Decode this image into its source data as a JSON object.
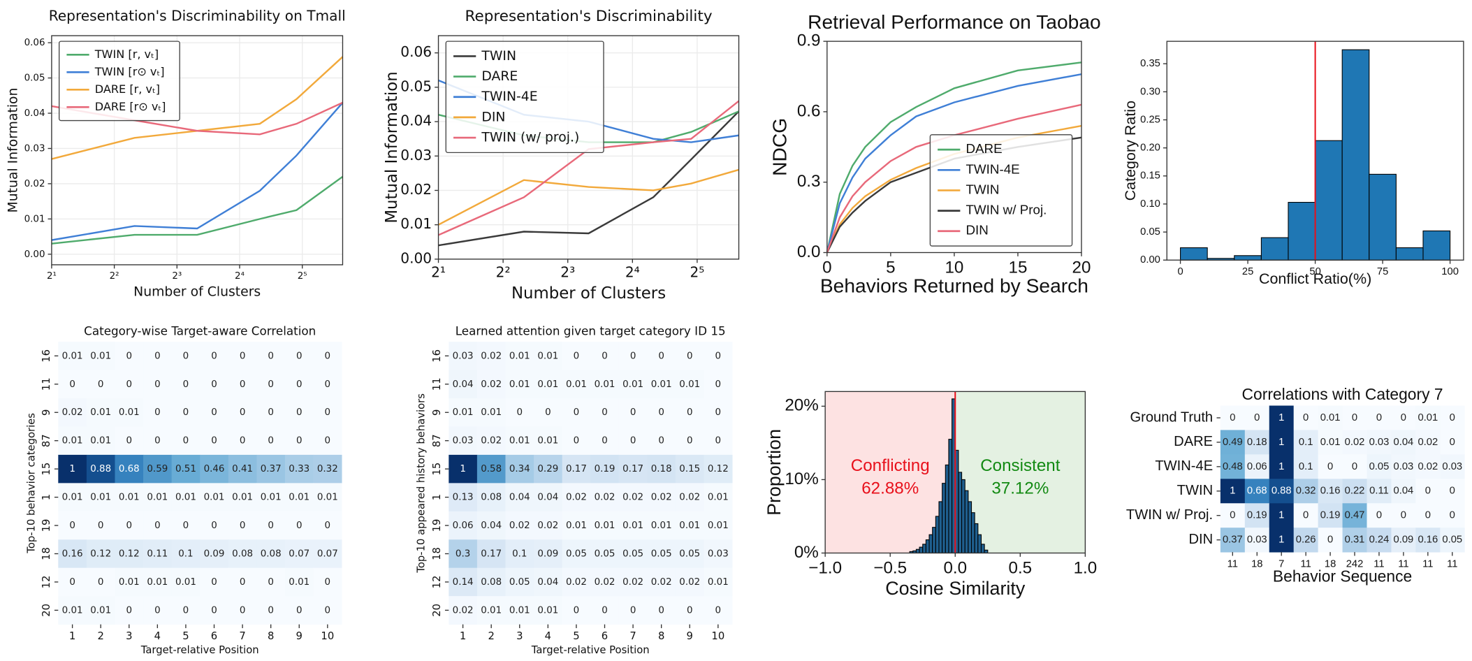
{
  "chart_data": [
    {
      "type": "line",
      "title": "Representation's Discriminability on Tmall",
      "xlabel": "Number of Clusters",
      "ylabel": "Mutual Information",
      "xscale": "log",
      "x": [
        2,
        5,
        10,
        20,
        30,
        50
      ],
      "xlim": [
        2,
        50
      ],
      "xticks": [
        {
          "value": 2,
          "label": "2¹"
        },
        {
          "value": 4,
          "label": "2²"
        },
        {
          "value": 8,
          "label": "2³"
        },
        {
          "value": 16,
          "label": "2⁴"
        },
        {
          "value": 32,
          "label": "2⁵"
        }
      ],
      "ylim": [
        -0.003,
        0.062
      ],
      "yticks": [
        {
          "value": 0,
          "label": "0.00"
        },
        0.01,
        0.02,
        0.03,
        0.04,
        0.05,
        0.06
      ],
      "grid": true,
      "legend": "upper left",
      "series": [
        {
          "name": "TWIN [r, vₜ]",
          "color": "#4fab6c",
          "values": [
            0.003,
            0.0055,
            0.0055,
            0.01,
            0.0125,
            0.022
          ]
        },
        {
          "name": "TWIN [r⊙ vₜ]",
          "color": "#3f7fd6",
          "values": [
            0.004,
            0.008,
            0.0073,
            0.018,
            0.028,
            0.043
          ]
        },
        {
          "name": "DARE [r, vₜ]",
          "color": "#f2a93b",
          "values": [
            0.027,
            0.033,
            0.035,
            0.037,
            0.044,
            0.056
          ]
        },
        {
          "name": "DARE [r⊙ vₜ]",
          "color": "#e8697a",
          "values": [
            0.042,
            0.038,
            0.035,
            0.034,
            0.037,
            0.043
          ]
        }
      ]
    },
    {
      "type": "line",
      "title": "Representation's Discriminability",
      "xlabel": "Number of Clusters",
      "ylabel": "Mutual Information",
      "xscale": "log",
      "x": [
        2,
        5,
        10,
        20,
        30,
        50
      ],
      "xlim": [
        2,
        50
      ],
      "xticks": [
        {
          "value": 2,
          "label": "2¹"
        },
        {
          "value": 4,
          "label": "2²"
        },
        {
          "value": 8,
          "label": "2³"
        },
        {
          "value": 16,
          "label": "2⁴"
        },
        {
          "value": 32,
          "label": "2⁵"
        }
      ],
      "ylim": [
        0,
        0.065
      ],
      "yticks": [
        {
          "value": 0,
          "label": "0.00"
        },
        0.01,
        0.02,
        0.03,
        0.04,
        0.05,
        0.06
      ],
      "grid": true,
      "legend": "upper left",
      "series": [
        {
          "name": "TWIN",
          "color": "#3a3a3a",
          "values": [
            0.004,
            0.008,
            0.0075,
            0.018,
            0.029,
            0.043
          ]
        },
        {
          "name": "DARE",
          "color": "#4fab6c",
          "values": [
            0.042,
            0.036,
            0.034,
            0.034,
            0.037,
            0.043
          ]
        },
        {
          "name": "TWIN-4E",
          "color": "#3f7fd6",
          "values": [
            0.052,
            0.042,
            0.04,
            0.035,
            0.034,
            0.036
          ]
        },
        {
          "name": "DIN",
          "color": "#f2a93b",
          "values": [
            0.01,
            0.023,
            0.021,
            0.02,
            0.022,
            0.026
          ]
        },
        {
          "name": "TWIN (w/ proj.)",
          "color": "#e8697a",
          "values": [
            0.007,
            0.018,
            0.032,
            0.034,
            0.035,
            0.046
          ]
        }
      ]
    },
    {
      "type": "line",
      "title": "Retrieval Performance on Taobao",
      "xlabel": "Behaviors Returned by Search",
      "ylabel": "NDCG",
      "x": [
        0,
        1,
        2,
        3,
        5,
        7,
        10,
        15,
        20
      ],
      "xlim": [
        0,
        20
      ],
      "xticks": [
        0,
        5,
        10,
        15,
        20
      ],
      "ylim": [
        0,
        0.9
      ],
      "yticks": [
        {
          "value": 0,
          "label": "0.0"
        },
        0.3,
        0.6,
        0.9
      ],
      "grid": false,
      "legend": "lower right",
      "series": [
        {
          "name": "DARE",
          "color": "#4fab6c",
          "values": [
            0,
            0.25,
            0.37,
            0.45,
            0.556,
            0.62,
            0.7,
            0.776,
            0.81
          ]
        },
        {
          "name": "TWIN-4E",
          "color": "#3f7fd6",
          "values": [
            0,
            0.21,
            0.32,
            0.4,
            0.5,
            0.58,
            0.64,
            0.71,
            0.76
          ]
        },
        {
          "name": "TWIN",
          "color": "#f2a93b",
          "values": [
            0,
            0.12,
            0.19,
            0.24,
            0.31,
            0.36,
            0.42,
            0.49,
            0.54
          ]
        },
        {
          "name": "TWIN w/ Proj.",
          "color": "#3a3a3a",
          "values": [
            0,
            0.11,
            0.17,
            0.22,
            0.3,
            0.34,
            0.4,
            0.45,
            0.49
          ]
        },
        {
          "name": "DIN",
          "color": "#e8697a",
          "values": [
            0,
            0.15,
            0.24,
            0.3,
            0.39,
            0.45,
            0.5,
            0.57,
            0.63
          ]
        }
      ]
    },
    {
      "type": "histogram",
      "xlabel": "Conflict Ratio(%)",
      "ylabel": "Category Ratio",
      "bins": [
        0,
        10,
        20,
        30,
        40,
        50,
        60,
        70,
        80,
        90,
        100
      ],
      "values": [
        0.022,
        0.003,
        0.008,
        0.04,
        0.103,
        0.213,
        0.375,
        0.153,
        0.022,
        0.052
      ],
      "color": "#1f77b4",
      "xlim": [
        -5,
        105
      ],
      "xticks": [
        0,
        25,
        50,
        75,
        100
      ],
      "ylim": [
        0,
        0.39
      ],
      "yticks": [
        {
          "value": 0,
          "label": "0.00"
        },
        0.05,
        {
          "value": 0.1,
          "label": "0.10"
        },
        0.15,
        {
          "value": 0.2,
          "label": "0.20"
        },
        0.25,
        {
          "value": 0.3,
          "label": "0.30"
        },
        0.35
      ],
      "vline": 50,
      "vline_color": "#e8101b"
    },
    {
      "type": "heatmap",
      "title": "Category-wise Target-aware Correlation",
      "xlabel": "Target-relative Position",
      "ylabel": "Top-10 behavior categories",
      "rows": [
        "16",
        "11",
        "9",
        "87",
        "15",
        "1",
        "19",
        "18",
        "12",
        "20"
      ],
      "columns": [
        "1",
        "2",
        "3",
        "4",
        "5",
        "6",
        "7",
        "8",
        "9",
        "10"
      ],
      "values": [
        [
          0.01,
          0.01,
          0,
          0,
          0,
          0,
          0,
          0,
          0,
          0
        ],
        [
          0,
          0,
          0,
          0,
          0,
          0,
          0,
          0,
          0,
          0
        ],
        [
          0.02,
          0.01,
          0.01,
          0,
          0,
          0,
          0,
          0,
          0,
          0
        ],
        [
          0.01,
          0.01,
          0,
          0,
          0,
          0,
          0,
          0,
          0,
          0
        ],
        [
          1,
          0.88,
          0.68,
          0.59,
          0.51,
          0.46,
          0.41,
          0.37,
          0.33,
          0.32
        ],
        [
          0.01,
          0.01,
          0.01,
          0.01,
          0.01,
          0.01,
          0.01,
          0.01,
          0.01,
          0.01
        ],
        [
          0,
          0,
          0,
          0,
          0,
          0,
          0,
          0,
          0,
          0
        ],
        [
          0.16,
          0.12,
          0.12,
          0.11,
          0.1,
          0.09,
          0.08,
          0.08,
          0.07,
          0.07
        ],
        [
          0,
          0,
          0.01,
          0.01,
          0.01,
          0,
          0,
          0,
          0.01,
          0
        ],
        [
          0.01,
          0.01,
          0,
          0,
          0,
          0,
          0,
          0,
          0,
          0
        ]
      ]
    },
    {
      "type": "heatmap",
      "title": "Learned attention given target category ID 15",
      "xlabel": "Target-relative Position",
      "ylabel": "Top-10 appeared history behaviors",
      "rows": [
        "16",
        "11",
        "9",
        "87",
        "15",
        "1",
        "19",
        "18",
        "12",
        "20"
      ],
      "columns": [
        "1",
        "2",
        "3",
        "4",
        "5",
        "6",
        "7",
        "8",
        "9",
        "10"
      ],
      "values": [
        [
          0.03,
          0.02,
          0.01,
          0.01,
          0,
          0,
          0,
          0,
          0,
          0
        ],
        [
          0.04,
          0.02,
          0.01,
          0.01,
          0.01,
          0.01,
          0.01,
          0.01,
          0.01,
          0
        ],
        [
          0.01,
          0.01,
          0,
          0,
          0,
          0,
          0,
          0,
          0,
          0
        ],
        [
          0.03,
          0.02,
          0.01,
          0.01,
          0,
          0,
          0,
          0,
          0,
          0
        ],
        [
          1,
          0.58,
          0.34,
          0.29,
          0.17,
          0.19,
          0.17,
          0.18,
          0.15,
          0.12
        ],
        [
          0.13,
          0.08,
          0.04,
          0.04,
          0.02,
          0.02,
          0.02,
          0.02,
          0.02,
          0.01
        ],
        [
          0.06,
          0.04,
          0.02,
          0.02,
          0.01,
          0.01,
          0.01,
          0.01,
          0.01,
          0.01
        ],
        [
          0.3,
          0.17,
          0.1,
          0.09,
          0.05,
          0.05,
          0.05,
          0.05,
          0.05,
          0.03
        ],
        [
          0.14,
          0.08,
          0.05,
          0.04,
          0.02,
          0.02,
          0.02,
          0.02,
          0.02,
          0.01
        ],
        [
          0.02,
          0.01,
          0.01,
          0.01,
          0,
          0,
          0,
          0,
          0,
          0
        ]
      ]
    },
    {
      "type": "histogram",
      "xlabel": "Cosine Similarity",
      "ylabel": "Proportion",
      "bins": [
        -0.35,
        -0.325,
        -0.3,
        -0.275,
        -0.25,
        -0.225,
        -0.2,
        -0.175,
        -0.15,
        -0.125,
        -0.1,
        -0.075,
        -0.05,
        -0.025,
        0,
        0.025,
        0.05,
        0.075,
        0.1,
        0.125,
        0.15,
        0.175,
        0.2,
        0.225,
        0.25
      ],
      "values": [
        0.2,
        0.3,
        0.5,
        0.8,
        1.2,
        1.8,
        2.5,
        3.5,
        5,
        7,
        9.5,
        12,
        15.5,
        21,
        14,
        11,
        10,
        8.5,
        7,
        5.5,
        4,
        2.5,
        1.2,
        0.4
      ],
      "color": "#1f5f8f",
      "xlim": [
        -1,
        1
      ],
      "xticks": [
        {
          "value": -1,
          "label": "−1.0"
        },
        {
          "value": -0.5,
          "label": "−0.5"
        },
        {
          "value": 0,
          "label": "0.0"
        },
        0.5,
        {
          "value": 1,
          "label": "1.0"
        }
      ],
      "ylim": [
        0,
        22
      ],
      "yticks": [
        {
          "value": 0,
          "label": "0%"
        },
        {
          "value": 10,
          "label": "10%"
        },
        {
          "value": 20,
          "label": "20%"
        }
      ],
      "vline": 0,
      "vline_color": "#e8101b",
      "shade_left_color": "#fde2e2",
      "shade_right_color": "#e4f1e2",
      "annotations": [
        {
          "lines": [
            "Conflicting",
            "62.88%"
          ],
          "color": "#e8101b"
        },
        {
          "lines": [
            "Consistent",
            "37.12%"
          ],
          "color": "#138a13"
        }
      ]
    },
    {
      "type": "heatmap",
      "title": "Correlations with Category 7",
      "xlabel": "Behavior Sequence",
      "rows": [
        "Ground Truth",
        "DARE",
        "TWIN-4E",
        "TWIN",
        "TWIN w/ Proj.",
        "DIN"
      ],
      "columns": [
        "11",
        "18",
        "7",
        "11",
        "18",
        "242",
        "11",
        "11",
        "11",
        "11"
      ],
      "values": [
        [
          0,
          0,
          1,
          0,
          0.01,
          0,
          0,
          0,
          0.01,
          0
        ],
        [
          0.49,
          0.18,
          1,
          0.1,
          0.01,
          0.02,
          0.03,
          0.04,
          0.02,
          0
        ],
        [
          0.48,
          0.06,
          1,
          0.1,
          0,
          0,
          0.05,
          0.03,
          0.02,
          0.03
        ],
        [
          1,
          0.68,
          0.88,
          0.32,
          0.16,
          0.22,
          0.11,
          0.04,
          0,
          0
        ],
        [
          0,
          0.19,
          1,
          0,
          0.19,
          0.47,
          0,
          0,
          0,
          0
        ],
        [
          0.37,
          0.03,
          1,
          0.26,
          0,
          0.31,
          0.24,
          0.09,
          0.16,
          0.05
        ]
      ]
    }
  ]
}
